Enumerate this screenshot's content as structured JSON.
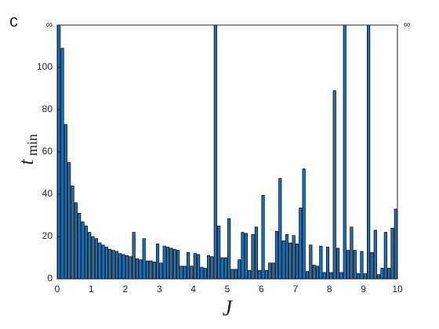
{
  "chart_data": {
    "type": "bar",
    "panel_label": "c",
    "xlabel": "J",
    "ylabel": "t",
    "ylabel_subscript": "min",
    "color": "#1f6fb4",
    "edgecolor": "#000000",
    "x": [
      0.05,
      0.15,
      0.25,
      0.35,
      0.45,
      0.55,
      0.65,
      0.75,
      0.85,
      0.95,
      1.05,
      1.15,
      1.25,
      1.35,
      1.45,
      1.55,
      1.65,
      1.75,
      1.85,
      1.95,
      2.05,
      2.15,
      2.25,
      2.35,
      2.45,
      2.55,
      2.65,
      2.75,
      2.85,
      2.95,
      3.05,
      3.15,
      3.25,
      3.35,
      3.45,
      3.55,
      3.65,
      3.75,
      3.85,
      3.95,
      4.05,
      4.15,
      4.25,
      4.35,
      4.45,
      4.55,
      4.65,
      4.75,
      4.85,
      4.95,
      5.05,
      5.15,
      5.25,
      5.35,
      5.45,
      5.55,
      5.65,
      5.75,
      5.85,
      5.95,
      6.05,
      6.15,
      6.25,
      6.35,
      6.45,
      6.55,
      6.65,
      6.75,
      6.85,
      6.95,
      7.05,
      7.15,
      7.25,
      7.35,
      7.45,
      7.55,
      7.65,
      7.75,
      7.85,
      7.95,
      8.05,
      8.15,
      8.25,
      8.35,
      8.45,
      8.55,
      8.65,
      8.75,
      8.85,
      8.95,
      9.05,
      9.15,
      9.25,
      9.35,
      9.45,
      9.55,
      9.65,
      9.75,
      9.85,
      9.95
    ],
    "values": [
      120,
      109,
      73,
      55,
      44,
      36,
      31,
      27,
      25,
      22,
      20,
      19,
      17,
      16,
      15,
      14,
      13.5,
      13,
      12,
      11.5,
      11,
      10.5,
      22,
      9.5,
      9,
      19,
      8.5,
      8.5,
      8,
      16.5,
      7.5,
      15.5,
      15,
      14.5,
      14,
      13.5,
      6,
      6,
      12.5,
      6,
      12,
      11.5,
      5.5,
      5,
      11,
      10.5,
      120,
      25,
      10,
      10,
      28.5,
      4.5,
      4.5,
      9,
      22,
      21.5,
      4,
      21,
      24.5,
      4,
      39.5,
      4,
      7.5,
      7.5,
      22.5,
      47.5,
      18,
      21,
      17,
      20.5,
      16.5,
      33.5,
      52,
      3.5,
      16,
      6.5,
      6,
      15.5,
      3,
      15,
      3,
      89,
      14.5,
      3,
      120,
      13.5,
      24.5,
      13.5,
      2.5,
      13,
      2.5,
      120,
      12.5,
      23,
      2,
      5,
      22,
      5,
      24,
      33
    ],
    "xlim": [
      0,
      10
    ],
    "xticks": [
      0,
      1,
      2,
      3,
      4,
      5,
      6,
      7,
      8,
      9,
      10
    ],
    "ylim": [
      0,
      120
    ],
    "yticks": [
      0,
      20,
      40,
      60,
      80,
      100,
      {
        "value": 120,
        "label": "∞"
      }
    ],
    "y2lim": [
      0,
      120
    ],
    "y2ticks": [
      {
        "value": 120,
        "label": "∞"
      }
    ]
  }
}
